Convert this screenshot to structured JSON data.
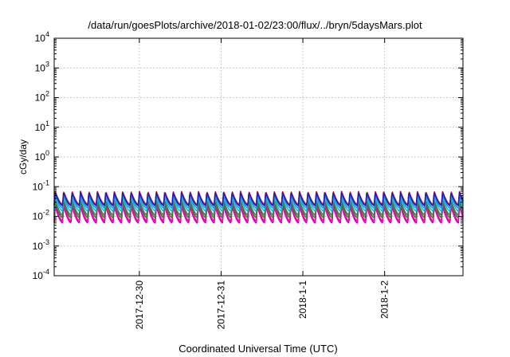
{
  "chart_data": {
    "type": "line",
    "title": "/data/run/goesPlots/archive/2018-01-02/23:00/flux/../bryn/5daysMars.plot",
    "xlabel": "Coordinated Universal Time (UTC)",
    "ylabel": "cGy/day",
    "yscale": "log",
    "ylim": [
      0.0001,
      10000
    ],
    "y_ticks": [
      {
        "value": 0.0001,
        "base": "10",
        "exp": "-4"
      },
      {
        "value": 0.001,
        "base": "10",
        "exp": "-3"
      },
      {
        "value": 0.01,
        "base": "10",
        "exp": "-2"
      },
      {
        "value": 0.1,
        "base": "10",
        "exp": "-1"
      },
      {
        "value": 1,
        "base": "10",
        "exp": "0"
      },
      {
        "value": 10,
        "base": "10",
        "exp": "1"
      },
      {
        "value": 100,
        "base": "10",
        "exp": "2"
      },
      {
        "value": 1000,
        "base": "10",
        "exp": "3"
      },
      {
        "value": 10000,
        "base": "10",
        "exp": "4"
      }
    ],
    "x_range_days": [
      "2017-12-28T23:00",
      "2018-01-02T23:00"
    ],
    "x_ticks": [
      {
        "label": "2017-12-30",
        "value": "2017-12-30"
      },
      {
        "label": "2017-12-31",
        "value": "2017-12-31"
      },
      {
        "label": "2018-1-1",
        "value": "2018-01-01"
      },
      {
        "label": "2018-1-2",
        "value": "2018-01-02"
      }
    ],
    "grid": true,
    "oscillation_period_days": 0.103,
    "series": [
      {
        "color": "#cc00cc",
        "peak": 0.022,
        "trough": 0.006
      },
      {
        "color": "#ff00aa",
        "peak": 0.025,
        "trough": 0.007
      },
      {
        "color": "#228b22",
        "peak": 0.03,
        "trough": 0.009
      },
      {
        "color": "#666666",
        "peak": 0.035,
        "trough": 0.011
      },
      {
        "color": "#00c8c8",
        "peak": 0.045,
        "trough": 0.015
      },
      {
        "color": "#1e90ff",
        "peak": 0.055,
        "trough": 0.019
      },
      {
        "color": "#e8171b",
        "peak": 0.07,
        "trough": 0.025
      },
      {
        "color": "#2020b0",
        "peak": 0.065,
        "trough": 0.023
      }
    ]
  }
}
